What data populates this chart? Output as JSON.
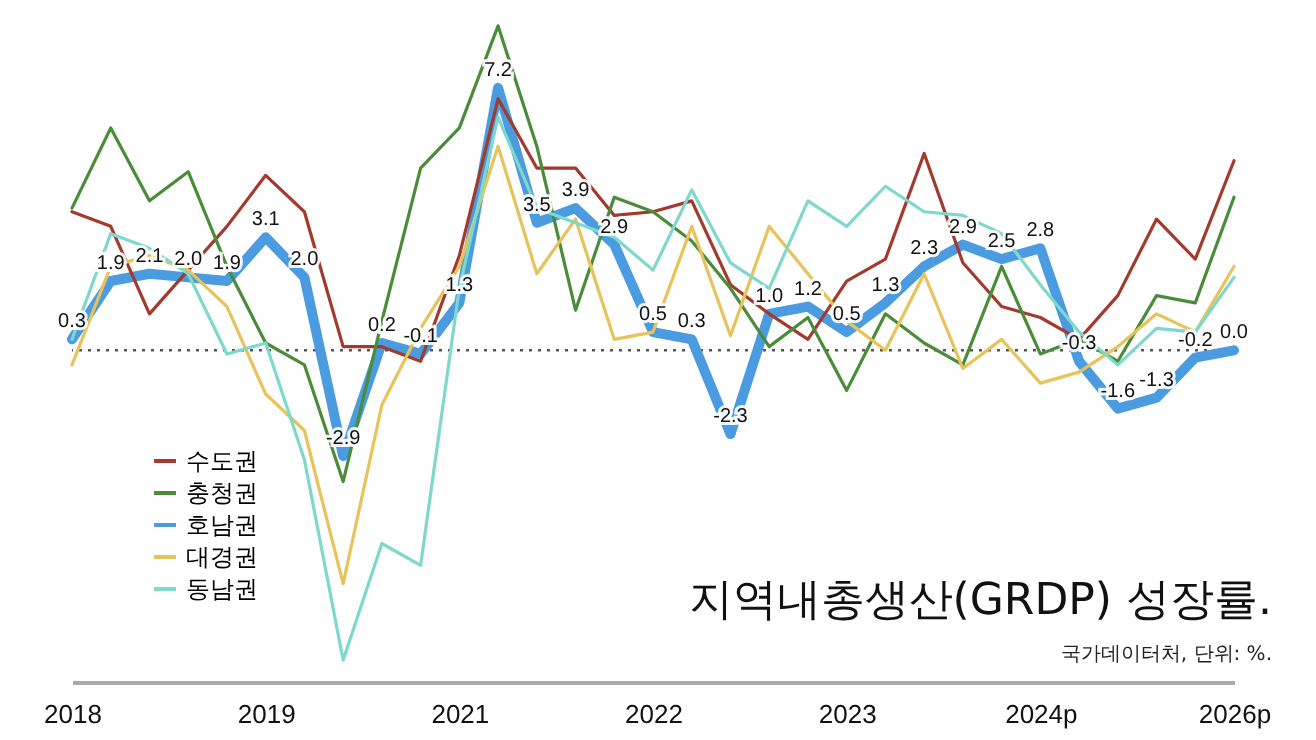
{
  "chart_data": {
    "type": "line",
    "title": "지역내총생산(GRDP) 성장률.",
    "annotations": [
      "국가데이터처, 단위: %."
    ],
    "categories": [
      "2018",
      null,
      null,
      null,
      null,
      "2019",
      null,
      null,
      null,
      null,
      "2021",
      null,
      null,
      null,
      null,
      "2022",
      null,
      null,
      null,
      null,
      "2023",
      null,
      null,
      null,
      null,
      "2024p",
      null,
      null,
      null,
      null,
      "2026p"
    ],
    "ylim": [
      -9.1,
      9.5
    ],
    "tick_labels": "x",
    "grid": false,
    "legend": "bottom left",
    "ref_lines": [
      {
        "axis": "y",
        "value": 0,
        "color": "#555555",
        "line_style": "dotted"
      }
    ],
    "series": [
      {
        "name": "수도권",
        "color": "#a33a2e",
        "values": [
          3.8,
          3.4,
          1.0,
          2.2,
          3.4,
          4.8,
          3.8,
          0.1,
          0.1,
          -0.3,
          2.6,
          6.9,
          5.0,
          5.0,
          3.7,
          3.8,
          4.1,
          1.8,
          1.0,
          0.3,
          1.9,
          2.5,
          5.4,
          2.4,
          1.2,
          0.9,
          0.3,
          1.5,
          3.6,
          2.5,
          5.2
        ]
      },
      {
        "name": "충청권",
        "color": "#4a8c3a",
        "values": [
          3.9,
          6.1,
          4.1,
          4.9,
          2.3,
          0.2,
          -0.4,
          -3.6,
          0.8,
          5.0,
          6.1,
          8.9,
          5.6,
          1.1,
          4.2,
          3.8,
          3.0,
          1.7,
          0.1,
          0.9,
          -1.1,
          1.0,
          0.2,
          -0.4,
          2.3,
          -0.1,
          0.3,
          -0.3,
          1.5,
          1.3,
          4.2
        ]
      },
      {
        "name": "호남권",
        "color": "#4a9be0",
        "values": [
          0.3,
          1.9,
          2.1,
          2.0,
          1.9,
          3.1,
          2.0,
          -2.9,
          0.2,
          -0.1,
          1.3,
          7.2,
          3.5,
          3.9,
          2.9,
          0.5,
          0.3,
          -2.3,
          1.0,
          1.2,
          0.5,
          1.3,
          2.3,
          2.9,
          2.5,
          2.8,
          -0.3,
          -1.6,
          -1.3,
          -0.2,
          0.0
        ],
        "value_labels": [
          "0.3",
          "1.9",
          "2.1",
          "2.0",
          "1.9",
          "3.1",
          "2.0",
          "-2.9",
          "0.2",
          "-0.1",
          "1.3",
          "7.2",
          "3.5",
          "3.9",
          "2.9",
          "0.5",
          "0.3",
          "-2.3",
          "1.0",
          "1.2",
          "0.5",
          "1.3",
          "2.3",
          "2.9",
          "2.5",
          "2.8",
          "-0.3",
          "-1.6",
          "-1.3",
          "-0.2",
          "0.0"
        ]
      },
      {
        "name": "대경권",
        "color": "#e8c35a",
        "values": [
          -0.4,
          2.3,
          2.6,
          2.2,
          1.2,
          -1.2,
          -2.2,
          -6.4,
          -1.5,
          0.6,
          2.3,
          5.6,
          2.1,
          3.6,
          0.3,
          0.5,
          3.4,
          0.4,
          3.4,
          2.1,
          0.8,
          0.0,
          2.1,
          -0.5,
          0.3,
          -0.9,
          -0.6,
          0.1,
          1.0,
          0.5,
          2.3
        ]
      },
      {
        "name": "동남권",
        "color": "#7fd8cc",
        "values": [
          0.3,
          3.2,
          2.8,
          2.1,
          -0.1,
          0.2,
          -3.0,
          -8.5,
          -5.3,
          -5.9,
          1.7,
          6.4,
          3.9,
          3.5,
          3.1,
          2.2,
          4.4,
          2.4,
          1.7,
          4.1,
          3.4,
          4.5,
          3.8,
          3.7,
          3.2,
          1.8,
          0.5,
          -0.4,
          0.6,
          0.5,
          2.0
        ]
      }
    ]
  }
}
